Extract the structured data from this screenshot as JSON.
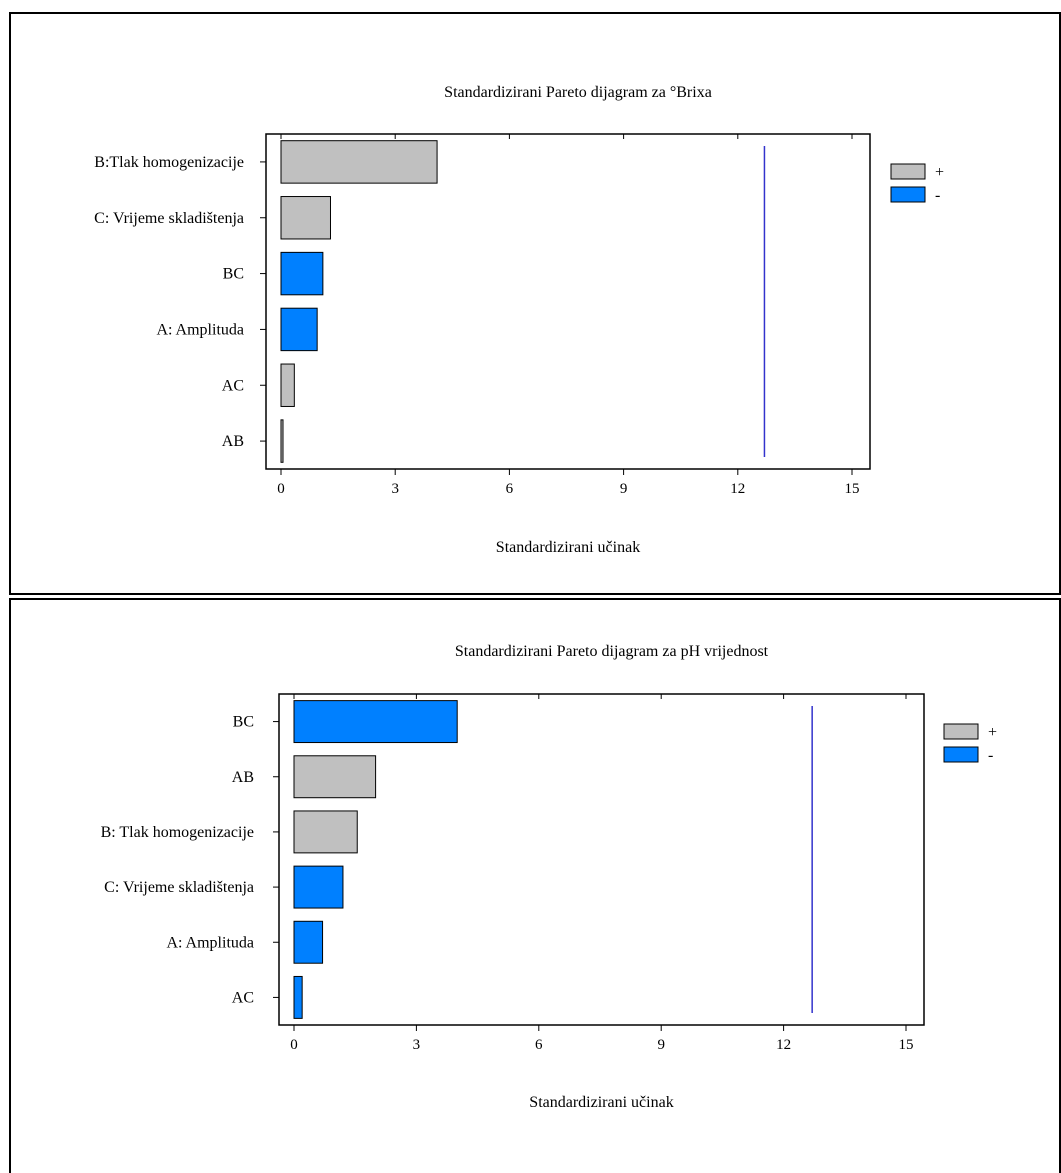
{
  "chart_data": [
    {
      "type": "bar",
      "orientation": "horizontal",
      "title": "Standardizirani  Pareto dijagram  za °Brixa",
      "xlabel": "Standardizirani  učinak",
      "xlim": [
        0,
        15
      ],
      "xticks": [
        "0",
        "3",
        "6",
        "9",
        "12",
        "15"
      ],
      "reference_line": 12.7,
      "categories": [
        "B:Tlak  homogenizacije",
        "C: Vrijeme  skladištenja",
        "BC",
        "A: Amplituda",
        "AC",
        "AB"
      ],
      "values": [
        4.1,
        1.3,
        1.1,
        0.95,
        0.35,
        0.05
      ],
      "signs": [
        "+",
        "+",
        "-",
        "-",
        "+",
        "+"
      ],
      "legend": [
        {
          "label": "+",
          "color": "#c0c0c0"
        },
        {
          "label": "-",
          "color": "#0080ff"
        }
      ],
      "legend_position": "right"
    },
    {
      "type": "bar",
      "orientation": "horizontal",
      "title": "Standardizirani  Pareto dijagram  za pH vrijednost",
      "xlabel": "Standardizirani  učinak",
      "xlim": [
        0,
        15
      ],
      "xticks": [
        "0",
        "3",
        "6",
        "9",
        "12",
        "15"
      ],
      "reference_line": 12.7,
      "categories": [
        "BC",
        "AB",
        "B:  Tlak homogenizacije",
        "C: Vrijeme  skladištenja",
        "A: Amplituda",
        "AC"
      ],
      "values": [
        4.0,
        2.0,
        1.55,
        1.2,
        0.7,
        0.2
      ],
      "signs": [
        "-",
        "+",
        "+",
        "-",
        "-",
        "-"
      ],
      "legend": [
        {
          "label": "+",
          "color": "#c0c0c0"
        },
        {
          "label": "-",
          "color": "#0080ff"
        }
      ],
      "legend_position": "right"
    }
  ]
}
